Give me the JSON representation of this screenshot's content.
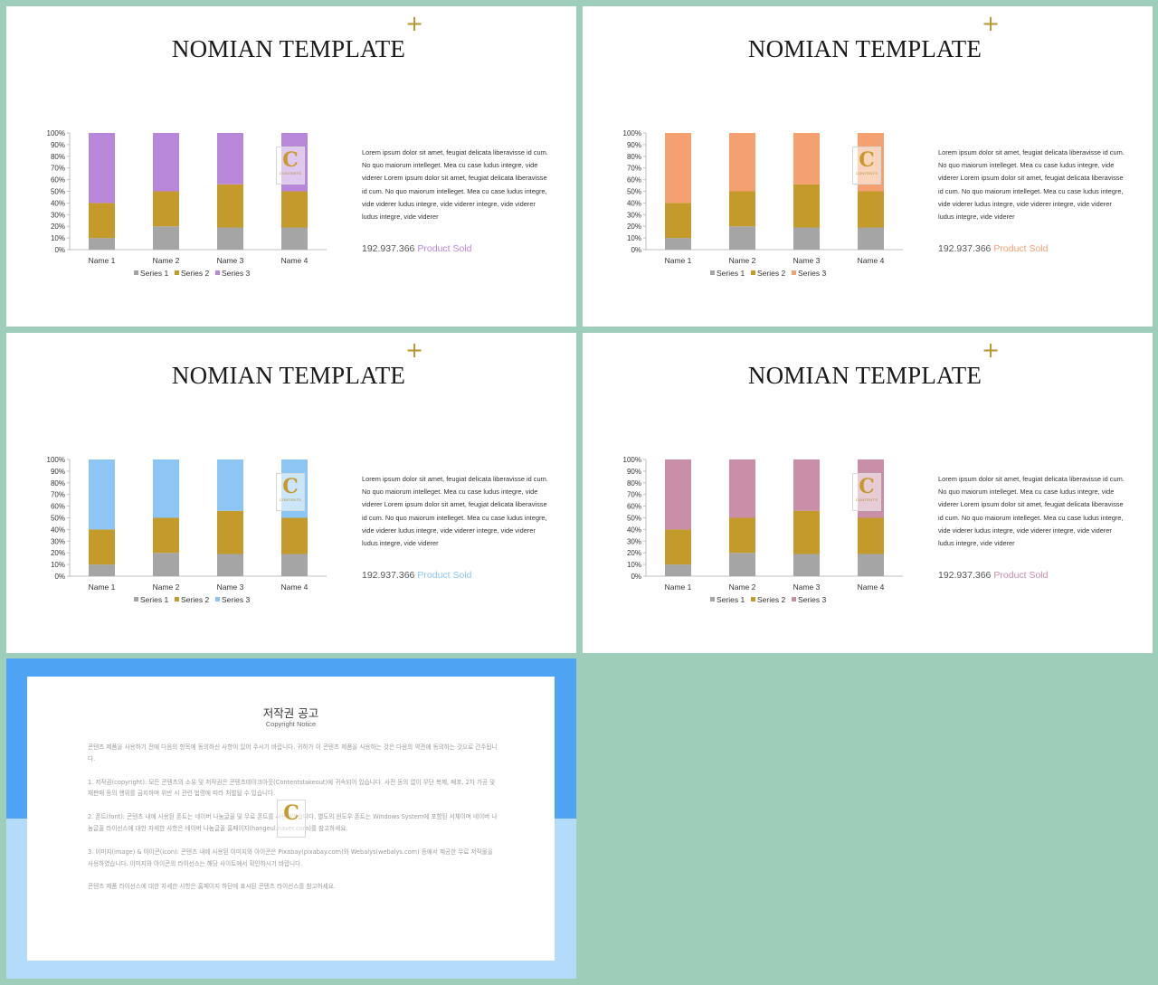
{
  "slides": [
    {
      "title": "NOMIAN TEMPLATE",
      "plus": "+",
      "description": "Lorem ipsum dolor sit amet, feugiat delicata liberavisse id cum. No quo maiorum intelleget. Mea cu case ludus integre, vide viderer Lorem ipsum dolor sit amet, feugiat delicata liberavisse id cum. No quo maiorum intelleget. Mea cu case ludus integre, vide viderer ludus integre, vide viderer integre, vide viderer ludus integre, vide viderer",
      "stat_number": "192.937.366",
      "stat_label": "Product Sold",
      "accent": "#b987d9",
      "logo_letter": "C",
      "logo_text": "CONTENTS"
    },
    {
      "title": "NOMIAN TEMPLATE",
      "plus": "+",
      "description": "Lorem ipsum dolor sit amet, feugiat delicata liberavisse id cum. No quo maiorum intelleget. Mea cu case ludus integre, vide viderer Lorem ipsum dolor sit amet, feugiat delicata liberavisse id cum. No quo maiorum intelleget. Mea cu case ludus integre, vide viderer ludus integre, vide viderer integre, vide viderer ludus integre, vide viderer",
      "stat_number": "192.937.366",
      "stat_label": "Product Sold",
      "accent": "#f5a070",
      "logo_letter": "C",
      "logo_text": "CONTENTS"
    },
    {
      "title": "NOMIAN TEMPLATE",
      "plus": "+",
      "description": "Lorem ipsum dolor sit amet, feugiat delicata liberavisse id cum. No quo maiorum intelleget. Mea cu case ludus integre, vide viderer Lorem ipsum dolor sit amet, feugiat delicata liberavisse id cum. No quo maiorum intelleget. Mea cu case ludus integre, vide viderer ludus integre, vide viderer integre, vide viderer ludus integre, vide viderer",
      "stat_number": "192.937.366",
      "stat_label": "Product Sold",
      "accent": "#8dc6f5",
      "logo_letter": "C",
      "logo_text": "CONTENTS"
    },
    {
      "title": "NOMIAN TEMPLATE",
      "plus": "+",
      "description": "Lorem ipsum dolor sit amet, feugiat delicata liberavisse id cum. No quo maiorum intelleget. Mea cu case ludus integre, vide viderer Lorem ipsum dolor sit amet, feugiat delicata liberavisse id cum. No quo maiorum intelleget. Mea cu case ludus integre, vide viderer ludus integre, vide viderer integre, vide viderer ludus integre, vide viderer",
      "stat_number": "192.937.366",
      "stat_label": "Product Sold",
      "accent": "#c98fa9",
      "logo_letter": "C",
      "logo_text": "CONTENTS"
    }
  ],
  "chart_data": [
    {
      "type": "bar",
      "stacked": "100%",
      "categories": [
        "Name 1",
        "Name 2",
        "Name 3",
        "Name 4"
      ],
      "series": [
        {
          "name": "Series 1",
          "values": [
            10,
            20,
            19,
            19
          ],
          "color": "#a5a5a5"
        },
        {
          "name": "Series 2",
          "values": [
            30,
            30,
            37,
            31
          ],
          "color": "#c49a2a"
        },
        {
          "name": "Series 3",
          "values": [
            60,
            50,
            44,
            50
          ],
          "color": "#b987d9"
        }
      ],
      "ylim": [
        0,
        100
      ],
      "yticks": [
        "0%",
        "10%",
        "20%",
        "30%",
        "40%",
        "50%",
        "60%",
        "70%",
        "80%",
        "90%",
        "100%"
      ],
      "legend": "bottom"
    },
    {
      "type": "bar",
      "stacked": "100%",
      "categories": [
        "Name 1",
        "Name 2",
        "Name 3",
        "Name 4"
      ],
      "series": [
        {
          "name": "Series 1",
          "values": [
            10,
            20,
            19,
            19
          ],
          "color": "#a5a5a5"
        },
        {
          "name": "Series 2",
          "values": [
            30,
            30,
            37,
            31
          ],
          "color": "#c49a2a"
        },
        {
          "name": "Series 3",
          "values": [
            60,
            50,
            44,
            50
          ],
          "color": "#f5a070"
        }
      ],
      "ylim": [
        0,
        100
      ],
      "yticks": [
        "0%",
        "10%",
        "20%",
        "30%",
        "40%",
        "50%",
        "60%",
        "70%",
        "80%",
        "90%",
        "100%"
      ],
      "legend": "bottom"
    },
    {
      "type": "bar",
      "stacked": "100%",
      "categories": [
        "Name 1",
        "Name 2",
        "Name 3",
        "Name 4"
      ],
      "series": [
        {
          "name": "Series 1",
          "values": [
            10,
            20,
            19,
            19
          ],
          "color": "#a5a5a5"
        },
        {
          "name": "Series 2",
          "values": [
            30,
            30,
            37,
            31
          ],
          "color": "#c49a2a"
        },
        {
          "name": "Series 3",
          "values": [
            60,
            50,
            44,
            50
          ],
          "color": "#8dc6f5"
        }
      ],
      "ylim": [
        0,
        100
      ],
      "yticks": [
        "0%",
        "10%",
        "20%",
        "30%",
        "40%",
        "50%",
        "60%",
        "70%",
        "80%",
        "90%",
        "100%"
      ],
      "legend": "bottom"
    },
    {
      "type": "bar",
      "stacked": "100%",
      "categories": [
        "Name 1",
        "Name 2",
        "Name 3",
        "Name 4"
      ],
      "series": [
        {
          "name": "Series 1",
          "values": [
            10,
            20,
            19,
            19
          ],
          "color": "#a5a5a5"
        },
        {
          "name": "Series 2",
          "values": [
            30,
            30,
            37,
            31
          ],
          "color": "#c49a2a"
        },
        {
          "name": "Series 3",
          "values": [
            60,
            50,
            44,
            50
          ],
          "color": "#c98fa9"
        }
      ],
      "ylim": [
        0,
        100
      ],
      "yticks": [
        "0%",
        "10%",
        "20%",
        "30%",
        "40%",
        "50%",
        "60%",
        "70%",
        "80%",
        "90%",
        "100%"
      ],
      "legend": "bottom"
    }
  ],
  "notice": {
    "title": "저작권 공고",
    "subtitle": "Copyright Notice",
    "paragraphs": [
      "콘텐츠 제품을 사용하기 전에 다음의 항목에 동의하신 사항이 있어 주시기 바랍니다. 귀하가 이 콘텐츠 제품을 사용하는 것은 다음의 약관에 동의하는 것으로 간주됩니다.",
      "1. 저작권(copyright): 모든 콘텐츠의 소유 및 저작권은 콘텐츠테이크아웃(Contentstakeout)에 귀속되어 있습니다. 사전 동의 없이 무단 복제, 배포, 2차 가공 및 재판매 등의 행위를 금지하며 위반 시 관련 법령에 따라 처벌될 수 있습니다.",
      "2. 폰트(font): 콘텐츠 내에 사용된 폰트는 네이버 나눔글꼴 및 무료 폰트를 사용하였습니다. 별도의 윈도우 폰트는 Windows System에 포함된 서체이며 네이버 나눔글꼴 라이선스에 대한 자세한 사항은 네이버 나눔글꼴 홈페이지(hangeul.naver.com)를 참고하세요.",
      "3. 이미지(image) & 아이콘(icon): 콘텐츠 내에 사용된 이미지와 아이콘은 Pixabay(pixabay.com)와 Webalys(webalys.com) 등에서 제공한 무료 저작물을 사용하였습니다. 이미지와 아이콘의 라이선스는 해당 사이트에서 확인하시기 바랍니다.",
      "콘텐츠 제품 라이선스에 대한 자세한 사항은 홈페이지 하단에 표시된 콘텐츠 라이선스를 참고하세요."
    ],
    "logo_letter": "C"
  }
}
